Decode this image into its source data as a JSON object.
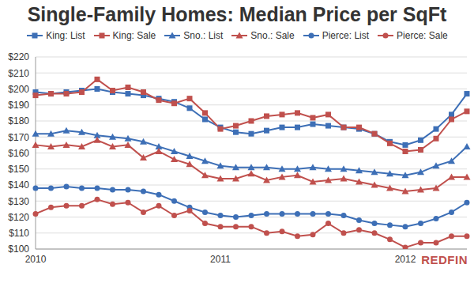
{
  "chart_data": {
    "type": "line",
    "title": "Single-Family Homes: Median Price per SqFt",
    "annotations": [
      "REDFIN"
    ],
    "categories": [
      "2010",
      null,
      null,
      null,
      null,
      null,
      null,
      null,
      null,
      null,
      null,
      null,
      "2011",
      null,
      null,
      null,
      null,
      null,
      null,
      null,
      null,
      null,
      null,
      null,
      "2012",
      null,
      null,
      null,
      null
    ],
    "ylim": [
      100,
      220
    ],
    "yticks": [
      {
        "value": 100,
        "label": "$100"
      },
      {
        "value": 110,
        "label": "$110"
      },
      {
        "value": 120,
        "label": "$120"
      },
      {
        "value": 130,
        "label": "$130"
      },
      {
        "value": 140,
        "label": "$140"
      },
      {
        "value": 150,
        "label": "$150"
      },
      {
        "value": 160,
        "label": "$160"
      },
      {
        "value": 170,
        "label": "$170"
      },
      {
        "value": 180,
        "label": "$180"
      },
      {
        "value": 190,
        "label": "$190"
      },
      {
        "value": 200,
        "label": "$200"
      },
      {
        "value": 210,
        "label": "$210"
      },
      {
        "value": 220,
        "label": "$220"
      }
    ],
    "grid": true,
    "legend": "top",
    "series": [
      {
        "name": "King: List",
        "color": "#3d6fb6",
        "marker": "square",
        "values": [
          198,
          197,
          198,
          199,
          200,
          198,
          197,
          196,
          194,
          192,
          188,
          181,
          176,
          173,
          172,
          174,
          176,
          176,
          178,
          177,
          176,
          175,
          172,
          167,
          165,
          168,
          175,
          184,
          197
        ]
      },
      {
        "name": "King: Sale",
        "color": "#c0504d",
        "marker": "square",
        "values": [
          196,
          197,
          197,
          198,
          206,
          199,
          201,
          198,
          193,
          191,
          194,
          185,
          175,
          177,
          180,
          183,
          184,
          185,
          182,
          184,
          176,
          176,
          172,
          166,
          161,
          162,
          169,
          181,
          186
        ]
      },
      {
        "name": "Sno.: List",
        "color": "#3d6fb6",
        "marker": "triangle",
        "values": [
          172,
          172,
          174,
          173,
          171,
          170,
          169,
          167,
          164,
          161,
          158,
          155,
          152,
          151,
          151,
          151,
          150,
          150,
          151,
          150,
          150,
          149,
          148,
          147,
          146,
          148,
          152,
          155,
          164
        ]
      },
      {
        "name": "Sno.: Sale",
        "color": "#c0504d",
        "marker": "triangle",
        "values": [
          165,
          164,
          165,
          164,
          168,
          164,
          165,
          157,
          161,
          156,
          153,
          146,
          144,
          144,
          147,
          143,
          145,
          146,
          142,
          143,
          144,
          142,
          140,
          138,
          136,
          137,
          138,
          145,
          145
        ]
      },
      {
        "name": "Pierce: List",
        "color": "#3d6fb6",
        "marker": "circle",
        "values": [
          138,
          138,
          139,
          138,
          138,
          137,
          137,
          136,
          134,
          130,
          126,
          123,
          121,
          120,
          121,
          122,
          122,
          122,
          122,
          122,
          121,
          118,
          116,
          115,
          114,
          116,
          119,
          123,
          129
        ]
      },
      {
        "name": "Pierce: Sale",
        "color": "#c0504d",
        "marker": "circle",
        "values": [
          122,
          126,
          127,
          127,
          131,
          128,
          129,
          123,
          127,
          121,
          124,
          116,
          114,
          114,
          114,
          110,
          111,
          108,
          109,
          116,
          110,
          112,
          110,
          106,
          101,
          104,
          104,
          108,
          108
        ]
      }
    ]
  }
}
